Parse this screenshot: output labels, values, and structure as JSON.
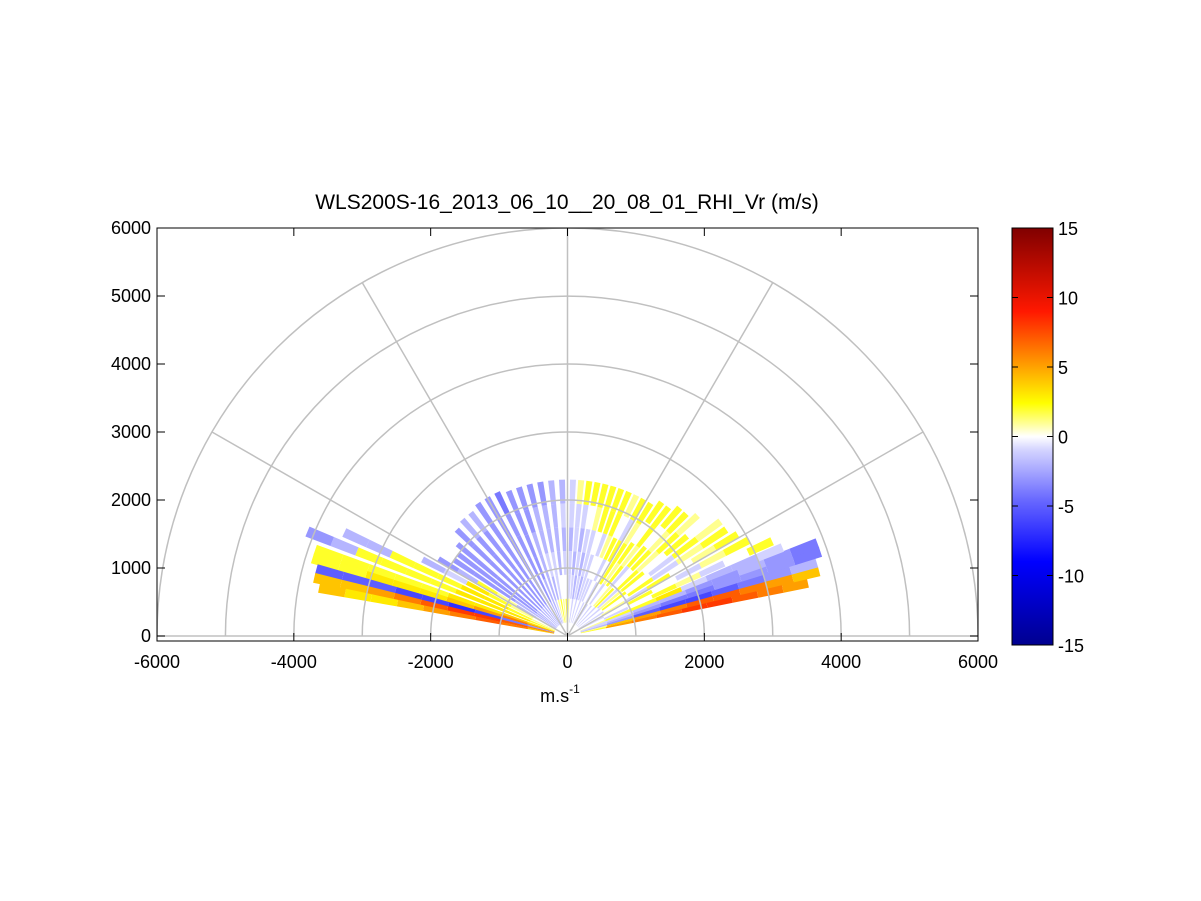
{
  "chart_data": {
    "type": "heatmap",
    "subtype": "polar-rhi-scan",
    "title": "WLS200S-16_2013_06_10__20_08_01_RHI_Vr (m/s)",
    "xlabel": "m.s",
    "xlabel_superscript": "-1",
    "ylabel": "",
    "xlim": [
      -6000,
      6000
    ],
    "ylim": [
      0,
      6000
    ],
    "xticks": [
      "-6000",
      "-4000",
      "-2000",
      "0",
      "2000",
      "4000",
      "6000"
    ],
    "yticks": [
      "0",
      "1000",
      "2000",
      "3000",
      "4000",
      "5000",
      "6000"
    ],
    "polar_grid": {
      "ring_radii": [
        1000,
        2000,
        3000,
        4000,
        5000,
        6000
      ],
      "spoke_angles_deg": [
        0,
        30,
        60,
        90,
        120,
        150,
        180
      ]
    },
    "colorbar": {
      "range": [
        -15,
        15
      ],
      "ticks": [
        "15",
        "10",
        "5",
        "0",
        "-5",
        "-10",
        "-15"
      ]
    },
    "sectors": [
      {
        "angle_deg": 12.5,
        "start_range": 200,
        "end_range": 3600,
        "vr": [
          2,
          5,
          6,
          7,
          8,
          8,
          7,
          6,
          5
        ]
      },
      {
        "angle_deg": 14.5,
        "start_range": 200,
        "end_range": 3800,
        "vr": [
          1,
          4,
          5,
          6,
          7,
          7,
          6,
          5,
          4
        ]
      },
      {
        "angle_deg": 16.5,
        "start_range": 200,
        "end_range": 3800,
        "vr": [
          -2,
          -3,
          -5,
          -6,
          -6,
          -5,
          -4,
          -3,
          -2
        ]
      },
      {
        "angle_deg": 18.5,
        "start_range": 200,
        "end_range": 3900,
        "vr": [
          -1,
          -2,
          -3,
          -4,
          -4,
          -3,
          -3,
          -3,
          -4
        ]
      },
      {
        "angle_deg": 20.5,
        "start_range": 200,
        "end_range": 3900,
        "vr": [
          -1,
          -1,
          -2,
          -2,
          -3,
          -3,
          -2,
          -3,
          -4
        ]
      },
      {
        "angle_deg": 22.5,
        "start_range": 200,
        "end_range": 3400,
        "vr": [
          1,
          2,
          2,
          3,
          -1,
          -2,
          -2,
          -1
        ]
      },
      {
        "angle_deg": 25,
        "start_range": 200,
        "end_range": 3300,
        "vr": [
          0,
          -1,
          0,
          2,
          1,
          -1,
          0,
          2
        ]
      },
      {
        "angle_deg": 28,
        "start_range": 200,
        "end_range": 3000,
        "vr": [
          -1,
          0,
          2,
          0,
          -1,
          1,
          2
        ]
      },
      {
        "angle_deg": 31,
        "start_range": 200,
        "end_range": 2900,
        "vr": [
          0,
          1,
          -1,
          2,
          0,
          1,
          2
        ]
      },
      {
        "angle_deg": 34,
        "start_range": 200,
        "end_range": 2800,
        "vr": [
          -1,
          0,
          2,
          -1,
          1,
          2
        ]
      },
      {
        "angle_deg": 37,
        "start_range": 200,
        "end_range": 2800,
        "vr": [
          0,
          2,
          0,
          -1,
          2,
          1
        ]
      },
      {
        "angle_deg": 40,
        "start_range": 200,
        "end_range": 2700,
        "vr": [
          -1,
          1,
          2,
          0,
          2,
          0
        ]
      },
      {
        "angle_deg": 43,
        "start_range": 200,
        "end_range": 2600,
        "vr": [
          0,
          -1,
          2,
          1,
          2,
          1
        ]
      },
      {
        "angle_deg": 46,
        "start_range": 200,
        "end_range": 2500,
        "vr": [
          -1,
          2,
          0,
          2,
          1,
          2
        ]
      },
      {
        "angle_deg": 49,
        "start_range": 200,
        "end_range": 2500,
        "vr": [
          0,
          1,
          -1,
          2,
          0,
          2
        ]
      },
      {
        "angle_deg": 52,
        "start_range": 200,
        "end_range": 2400,
        "vr": [
          -1,
          0,
          2,
          1,
          2,
          2
        ]
      },
      {
        "angle_deg": 55,
        "start_range": 200,
        "end_range": 2400,
        "vr": [
          0,
          -1,
          1,
          2,
          0,
          2
        ]
      },
      {
        "angle_deg": 58,
        "start_range": 200,
        "end_range": 2300,
        "vr": [
          -1,
          0,
          2,
          2,
          1,
          2
        ]
      },
      {
        "angle_deg": 61,
        "start_range": 200,
        "end_range": 2300,
        "vr": [
          0,
          -1,
          0,
          2,
          -1,
          2
        ]
      },
      {
        "angle_deg": 64,
        "start_range": 200,
        "end_range": 2300,
        "vr": [
          -1,
          0,
          -1,
          2,
          0,
          1
        ]
      },
      {
        "angle_deg": 67,
        "start_range": 200,
        "end_range": 2300,
        "vr": [
          0,
          -1,
          0,
          1,
          2,
          2
        ]
      },
      {
        "angle_deg": 70,
        "start_range": 200,
        "end_range": 2300,
        "vr": [
          -1,
          -1,
          0,
          -1,
          2,
          2
        ]
      },
      {
        "angle_deg": 73,
        "start_range": 200,
        "end_range": 2300,
        "vr": [
          0,
          -1,
          -1,
          0,
          2,
          2
        ]
      },
      {
        "angle_deg": 76,
        "start_range": 200,
        "end_range": 2300,
        "vr": [
          -1,
          -2,
          -1,
          -1,
          1,
          2
        ]
      },
      {
        "angle_deg": 79,
        "start_range": 200,
        "end_range": 2300,
        "vr": [
          0,
          -1,
          -2,
          -1,
          0,
          2
        ]
      },
      {
        "angle_deg": 82,
        "start_range": 200,
        "end_range": 2300,
        "vr": [
          -1,
          -2,
          -1,
          -2,
          -1,
          2
        ]
      },
      {
        "angle_deg": 85,
        "start_range": 200,
        "end_range": 2300,
        "vr": [
          0,
          -1,
          -2,
          -1,
          -1,
          1
        ]
      },
      {
        "angle_deg": 88,
        "start_range": 200,
        "end_range": 2300,
        "vr": [
          1,
          -1,
          -1,
          -2,
          -1,
          -1
        ]
      },
      {
        "angle_deg": 92,
        "start_range": 200,
        "end_range": 2300,
        "vr": [
          2,
          0,
          -1,
          -2,
          -1,
          -2
        ]
      },
      {
        "angle_deg": 96,
        "start_range": 200,
        "end_range": 2300,
        "vr": [
          1,
          0,
          -2,
          -2,
          -2,
          -2
        ]
      },
      {
        "angle_deg": 100,
        "start_range": 200,
        "end_range": 2300,
        "vr": [
          2,
          -1,
          -1,
          -2,
          -2,
          -3
        ]
      },
      {
        "angle_deg": 104,
        "start_range": 200,
        "end_range": 2300,
        "vr": [
          1,
          -2,
          -1,
          -2,
          -2,
          -3
        ]
      },
      {
        "angle_deg": 108,
        "start_range": 200,
        "end_range": 2300,
        "vr": [
          -1,
          -2,
          -2,
          -2,
          -3,
          -3
        ]
      },
      {
        "angle_deg": 112,
        "start_range": 200,
        "end_range": 2300,
        "vr": [
          -2,
          -2,
          -3,
          -3,
          -3,
          -3
        ]
      },
      {
        "angle_deg": 116,
        "start_range": 200,
        "end_range": 2350,
        "vr": [
          -2,
          -3,
          -3,
          -3,
          -3,
          -4
        ]
      },
      {
        "angle_deg": 120,
        "start_range": 200,
        "end_range": 2350,
        "vr": [
          -2,
          -3,
          -3,
          -3,
          -3,
          -3
        ]
      },
      {
        "angle_deg": 124,
        "start_range": 200,
        "end_range": 2350,
        "vr": [
          -2,
          -3,
          -3,
          -3,
          -3,
          -3
        ]
      },
      {
        "angle_deg": 128,
        "start_range": 200,
        "end_range": 2300,
        "vr": [
          -2,
          -3,
          -3,
          -3,
          -3,
          -2
        ]
      },
      {
        "angle_deg": 132,
        "start_range": 200,
        "end_range": 2300,
        "vr": [
          -2,
          -3,
          -3,
          -3,
          -3,
          -2
        ]
      },
      {
        "angle_deg": 136,
        "start_range": 200,
        "end_range": 2250,
        "vr": [
          -2,
          -3,
          -3,
          -3,
          -3,
          -3
        ]
      },
      {
        "angle_deg": 140,
        "start_range": 200,
        "end_range": 2100,
        "vr": [
          -2,
          -3,
          -3,
          -3,
          -3
        ]
      },
      {
        "angle_deg": 143,
        "start_range": 200,
        "end_range": 2000,
        "vr": [
          -2,
          -3,
          -3,
          -3,
          -3
        ]
      },
      {
        "angle_deg": 146,
        "start_range": 200,
        "end_range": 2000,
        "vr": [
          -2,
          -2,
          -3,
          -3,
          -3
        ]
      },
      {
        "angle_deg": 149,
        "start_range": 200,
        "end_range": 2200,
        "vr": [
          -1,
          -2,
          1,
          2,
          -2,
          -3
        ]
      },
      {
        "angle_deg": 152,
        "start_range": 200,
        "end_range": 2400,
        "vr": [
          0,
          1,
          2,
          3,
          -1,
          -2
        ]
      },
      {
        "angle_deg": 155,
        "start_range": 200,
        "end_range": 3600,
        "vr": [
          1,
          2,
          3,
          3,
          2,
          2,
          2,
          -2,
          -2
        ]
      },
      {
        "angle_deg": 158,
        "start_range": 200,
        "end_range": 4100,
        "vr": [
          2,
          3,
          3,
          3,
          2,
          2,
          2,
          2,
          -2,
          -3
        ]
      },
      {
        "angle_deg": 161,
        "start_range": 200,
        "end_range": 3900,
        "vr": [
          3,
          4,
          3,
          3,
          2,
          2,
          2,
          2,
          2
        ]
      },
      {
        "angle_deg": 163,
        "start_range": 200,
        "end_range": 3900,
        "vr": [
          5,
          6,
          5,
          4,
          3,
          3,
          3,
          2,
          2
        ]
      },
      {
        "angle_deg": 165,
        "start_range": 200,
        "end_range": 3800,
        "vr": [
          -3,
          -4,
          -6,
          -7,
          -6,
          -6,
          -5,
          -5,
          -5
        ]
      },
      {
        "angle_deg": 167,
        "start_range": 200,
        "end_range": 3800,
        "vr": [
          6,
          7,
          8,
          8,
          7,
          6,
          5,
          4,
          4
        ]
      },
      {
        "angle_deg": 169,
        "start_range": 200,
        "end_range": 3700,
        "vr": [
          4,
          6,
          7,
          6,
          5,
          4,
          3,
          3,
          4
        ]
      }
    ]
  }
}
